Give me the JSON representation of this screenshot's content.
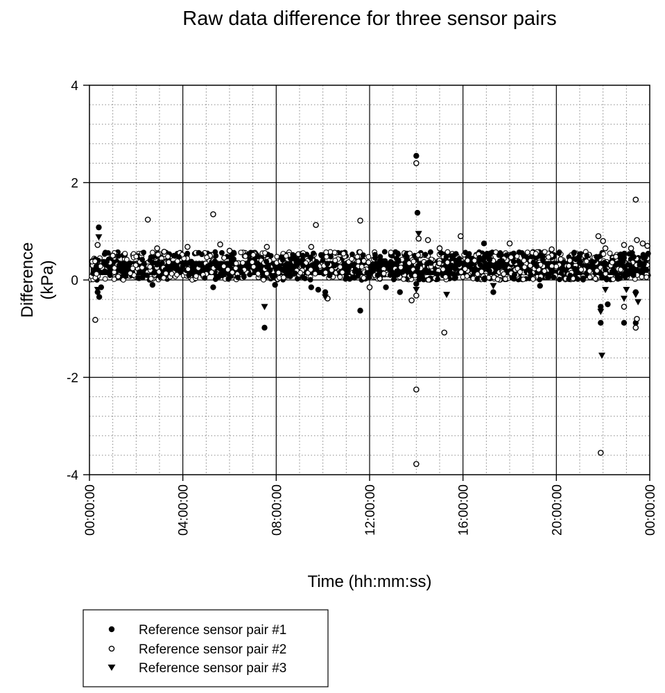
{
  "chart_data": {
    "type": "scatter",
    "title": "Raw data difference for three sensor pairs",
    "xlabel": "Time (hh:mm:ss)",
    "ylabel_lines": [
      "Difference",
      "(kPa)"
    ],
    "xlim": [
      0,
      24
    ],
    "ylim": [
      -4,
      4
    ],
    "x_unit": "hours",
    "x_ticks": [
      0,
      4,
      8,
      12,
      16,
      20,
      24
    ],
    "x_tick_labels": [
      "00:00:00",
      "04:00:00",
      "08:00:00",
      "12:00:00",
      "16:00:00",
      "20:00:00",
      "00:00:00"
    ],
    "y_ticks": [
      -4,
      -2,
      0,
      2,
      4
    ],
    "y_tick_labels": [
      "-4",
      "-2",
      "0",
      "2",
      "4"
    ],
    "grid": {
      "major": true,
      "minor": true,
      "minor_x_step": 1,
      "minor_y_step": 0.4
    },
    "legend_position": "bottom-left",
    "dense_band": {
      "y_min": 0.05,
      "y_max": 0.45,
      "typical": 0.22,
      "note_series_all": true
    },
    "series": [
      {
        "name": "Reference sensor pair #1",
        "marker": "filled-circle",
        "color": "#000000",
        "points": [
          [
            0.4,
            1.08
          ],
          [
            0.35,
            -0.25
          ],
          [
            0.42,
            -0.35
          ],
          [
            0.5,
            -0.15
          ],
          [
            2.7,
            -0.1
          ],
          [
            5.3,
            -0.15
          ],
          [
            7.5,
            -0.98
          ],
          [
            7.95,
            -0.1
          ],
          [
            9.8,
            -0.2
          ],
          [
            9.5,
            -0.15
          ],
          [
            10.1,
            -0.25
          ],
          [
            11.6,
            -0.63
          ],
          [
            12.7,
            -0.15
          ],
          [
            13.3,
            -0.25
          ],
          [
            14.0,
            2.55
          ],
          [
            14.05,
            1.38
          ],
          [
            14.0,
            -0.08
          ],
          [
            16.9,
            0.75
          ],
          [
            17.3,
            -0.25
          ],
          [
            19.3,
            -0.12
          ],
          [
            21.9,
            -0.88
          ],
          [
            21.9,
            -0.55
          ],
          [
            22.2,
            -0.5
          ],
          [
            22.9,
            -0.88
          ],
          [
            23.4,
            -0.88
          ],
          [
            23.4,
            -0.25
          ],
          [
            23.3,
            0.1
          ]
        ]
      },
      {
        "name": "Reference sensor pair #2",
        "marker": "open-circle",
        "color": "#000000",
        "points": [
          [
            0.25,
            -0.82
          ],
          [
            0.35,
            0.72
          ],
          [
            1.0,
            0.5
          ],
          [
            2.5,
            1.24
          ],
          [
            2.9,
            0.65
          ],
          [
            3.2,
            0.58
          ],
          [
            4.2,
            0.68
          ],
          [
            5.3,
            1.35
          ],
          [
            5.6,
            0.73
          ],
          [
            6.0,
            0.6
          ],
          [
            7.6,
            0.68
          ],
          [
            9.5,
            0.68
          ],
          [
            9.7,
            1.13
          ],
          [
            10.2,
            -0.38
          ],
          [
            11.6,
            1.22
          ],
          [
            12.0,
            -0.15
          ],
          [
            13.8,
            -0.42
          ],
          [
            14.0,
            2.4
          ],
          [
            14.0,
            -2.25
          ],
          [
            14.0,
            -3.78
          ],
          [
            14.0,
            -0.32
          ],
          [
            14.1,
            0.85
          ],
          [
            14.5,
            0.82
          ],
          [
            15.2,
            -1.08
          ],
          [
            15.9,
            0.9
          ],
          [
            15.0,
            0.65
          ],
          [
            18.0,
            0.75
          ],
          [
            19.8,
            0.63
          ],
          [
            21.8,
            0.9
          ],
          [
            22.0,
            0.8
          ],
          [
            22.1,
            0.65
          ],
          [
            21.9,
            -3.55
          ],
          [
            22.9,
            -0.55
          ],
          [
            22.9,
            0.72
          ],
          [
            23.2,
            0.65
          ],
          [
            23.4,
            1.65
          ],
          [
            23.45,
            0.82
          ],
          [
            23.4,
            -0.98
          ],
          [
            23.45,
            -0.8
          ],
          [
            23.7,
            0.75
          ],
          [
            23.9,
            0.7
          ]
        ]
      },
      {
        "name": "Reference sensor pair #3",
        "marker": "filled-triangle-down",
        "color": "#000000",
        "points": [
          [
            0.4,
            0.88
          ],
          [
            0.35,
            -0.2
          ],
          [
            3.0,
            0.05
          ],
          [
            7.5,
            -0.55
          ],
          [
            10.1,
            -0.35
          ],
          [
            14.1,
            0.95
          ],
          [
            14.0,
            -0.2
          ],
          [
            15.3,
            -0.3
          ],
          [
            17.3,
            -0.12
          ],
          [
            21.9,
            -0.65
          ],
          [
            21.95,
            -1.55
          ],
          [
            22.1,
            -0.2
          ],
          [
            22.9,
            -0.38
          ],
          [
            23.0,
            -0.2
          ],
          [
            23.5,
            -0.45
          ],
          [
            23.4,
            -0.3
          ]
        ]
      }
    ]
  }
}
